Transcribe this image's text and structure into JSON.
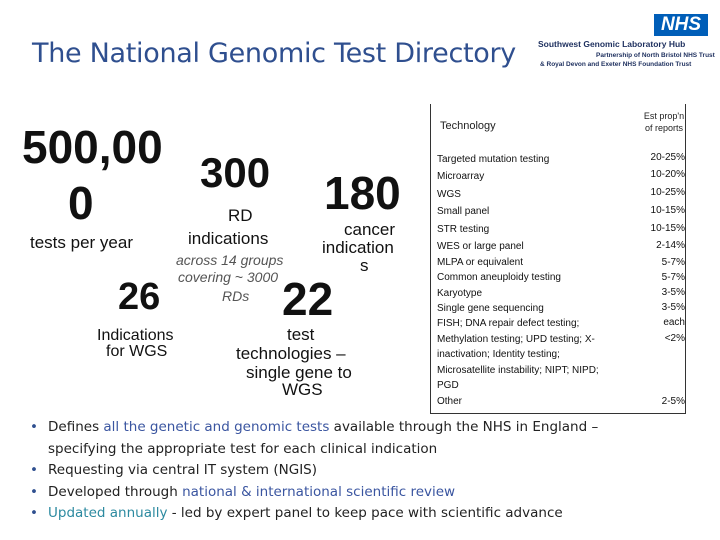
{
  "title": "The National Genomic Test Directory",
  "logo": {
    "nhs": "NHS",
    "org": "Southwest Genomic Laboratory Hub",
    "sub1": "Partnership of North Bristol NHS Trust",
    "sub2": "& Royal Devon and Exeter NHS Foundation Trust"
  },
  "stats": {
    "tests_value": "500,00",
    "tests_value2": "0",
    "tests_label": "tests per year",
    "rd_value": "300",
    "rd_label1": "RD",
    "rd_label2": "indications",
    "rd_note1": "across 14 groups",
    "rd_note2": "covering ~ 3000",
    "rd_note3": "RDs",
    "cancer_value": "180",
    "cancer_label1": "cancer",
    "cancer_label2": "indication",
    "cancer_label3": "s",
    "wgs_value": "26",
    "wgs_label1": "Indications",
    "wgs_label2": "for WGS",
    "tech_value": "22",
    "tech_label1": "test",
    "tech_label2": "technologies –",
    "tech_label3": "single gene to",
    "tech_label4": "WGS"
  },
  "table": {
    "header_tech": "Technology",
    "header_prop_1": "Est prop'n",
    "header_prop_2": "of reports",
    "rows": [
      {
        "tech": "Targeted mutation testing",
        "pct": "20-25%"
      },
      {
        "tech": "Microarray",
        "pct": "10-20%"
      },
      {
        "tech": "WGS",
        "pct": "10-25%"
      },
      {
        "tech": "Small panel",
        "pct": "10-15%"
      },
      {
        "tech": "STR testing",
        "pct": "10-15%"
      },
      {
        "tech": "WES or large panel",
        "pct": "2-14%"
      },
      {
        "tech": "MLPA or equivalent",
        "pct": "5-7%"
      },
      {
        "tech": "Common aneuploidy testing",
        "pct": "5-7%"
      },
      {
        "tech": "Karyotype",
        "pct": "3-5%"
      },
      {
        "tech": "Single gene sequencing",
        "pct": "3-5%"
      }
    ],
    "multi_row": {
      "lines": [
        "FISH; DNA repair defect testing;",
        "Methylation testing; UPD testing; X-",
        "inactivation; Identity testing;",
        "Microsatellite instability; NIPT; NIPD;",
        "PGD"
      ],
      "pct1": "each",
      "pct2": "<2%"
    },
    "other_row": {
      "tech": "Other",
      "pct": "2-5%"
    }
  },
  "bullets": {
    "b1_pre": "Defines ",
    "b1_hl": "all the genetic and genomic tests",
    "b1_post": " available through the NHS in England –",
    "b1_line2": "specifying the appropriate test for each clinical indication",
    "b2": "Requesting via central IT system (NGIS)",
    "b3_pre": "Developed through ",
    "b3_hl": "national & international scientific review",
    "b4_hl": "Updated annually",
    "b4_post": " - led by expert panel to keep pace with scientific advance"
  },
  "colors": {
    "title": "#2f4f8f",
    "highlight": "#3a55a0",
    "highlight_alt": "#2c8aa0",
    "nhs_blue": "#005eb8"
  }
}
